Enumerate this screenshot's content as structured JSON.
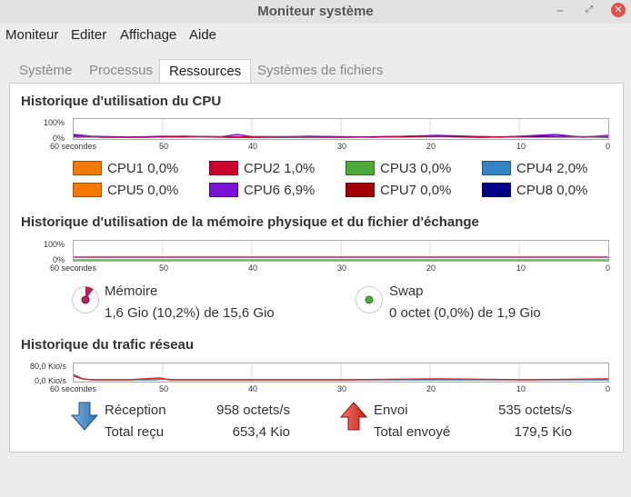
{
  "window": {
    "title": "Moniteur système"
  },
  "menubar": [
    "Moniteur",
    "Editer",
    "Affichage",
    "Aide"
  ],
  "tabs": [
    "Système",
    "Processus",
    "Ressources",
    "Systèmes de fichiers"
  ],
  "active_tab": "Ressources",
  "cpu": {
    "title": "Historique d'utilisation du CPU",
    "y_top": "100%",
    "y_bottom": "0%",
    "x_ticks": [
      "60 secondes",
      "50",
      "40",
      "30",
      "20",
      "10",
      "0"
    ],
    "cores": [
      {
        "label": "CPU1",
        "value": "0,0%",
        "color": "#f57900"
      },
      {
        "label": "CPU2",
        "value": "1,0%",
        "color": "#cc0030"
      },
      {
        "label": "CPU3",
        "value": "0,0%",
        "color": "#4ea83a"
      },
      {
        "label": "CPU4",
        "value": "2,0%",
        "color": "#3583c5"
      },
      {
        "label": "CPU5",
        "value": "0,0%",
        "color": "#f57900"
      },
      {
        "label": "CPU6",
        "value": "6,9%",
        "color": "#7a12d6"
      },
      {
        "label": "CPU7",
        "value": "0,0%",
        "color": "#a40000"
      },
      {
        "label": "CPU8",
        "value": "0,0%",
        "color": "#00008a"
      }
    ]
  },
  "memory": {
    "title": "Historique d'utilisation de la mémoire physique et du fichier d'échange",
    "y_top": "100%",
    "y_bottom": "0%",
    "x_ticks": [
      "60 secondes",
      "50",
      "40",
      "30",
      "20",
      "10",
      "0"
    ],
    "ram": {
      "label": "Mémoire",
      "value": "1,6 Gio (10,2%) de 15,6 Gio",
      "color": "#b2245a",
      "fraction": 0.102
    },
    "swap": {
      "label": "Swap",
      "value": "0 octet (0,0%) de 1,9 Gio",
      "color": "#4ea83a",
      "fraction": 0.0
    }
  },
  "network": {
    "title": "Historique du trafic réseau",
    "y_top": "80,0 Kio/s",
    "y_bottom": "0,0 Kio/s",
    "x_ticks": [
      "60 secondes",
      "50",
      "40",
      "30",
      "20",
      "10",
      "0"
    ],
    "receive": {
      "label": "Réception",
      "rate": "958 octets/s",
      "total_label": "Total reçu",
      "total": "653,4 Kio",
      "color": "#3583c5"
    },
    "send": {
      "label": "Envoi",
      "rate": "535 octets/s",
      "total_label": "Total envoyé",
      "total": "179,5 Kio",
      "color": "#e0261d"
    }
  }
}
